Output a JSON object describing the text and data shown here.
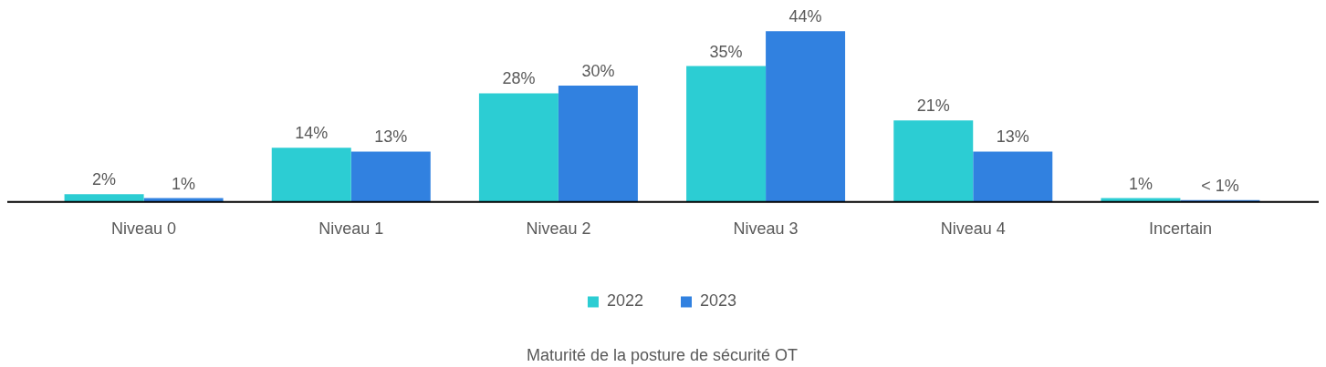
{
  "chart_data": {
    "type": "bar",
    "categories": [
      "Niveau 0",
      "Niveau 1",
      "Niveau 2",
      "Niveau 3",
      "Niveau 4",
      "Incertain"
    ],
    "series": [
      {
        "name": "2022",
        "color": "#2ccdd3",
        "values": [
          2,
          14,
          28,
          35,
          21,
          1
        ],
        "value_labels": [
          "2%",
          "14%",
          "28%",
          "35%",
          "21%",
          "1%"
        ]
      },
      {
        "name": "2023",
        "color": "#3181e0",
        "values": [
          1,
          13,
          30,
          44,
          13,
          0.5
        ],
        "value_labels": [
          "1%",
          "13%",
          "30%",
          "44%",
          "13%",
          "< 1%"
        ]
      }
    ],
    "legend": "bottom",
    "tick_labels": "x",
    "annotations": [
      "Maturité de la posture de sécurité OT"
    ]
  }
}
